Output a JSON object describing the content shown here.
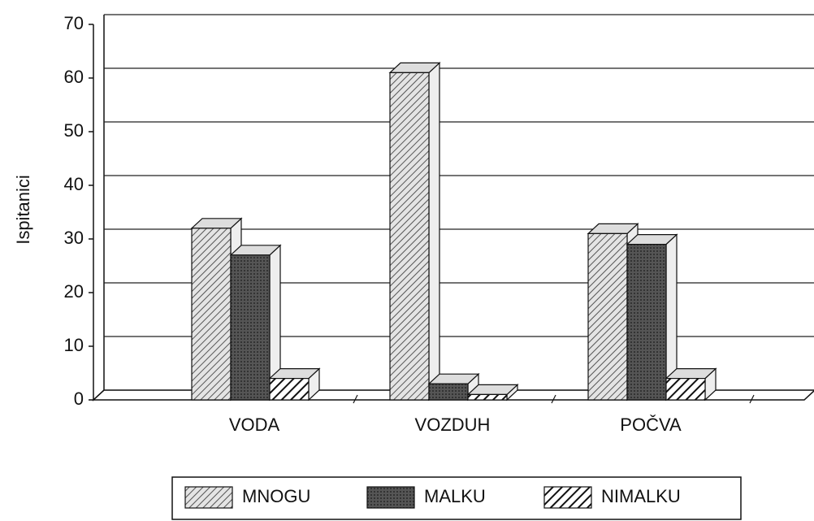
{
  "chart_data": {
    "type": "bar3d",
    "ylabel": "Ispitanici",
    "categories": [
      "VODA",
      "VOZDUH",
      "POČVA"
    ],
    "series": [
      {
        "name": "MNOGU",
        "color": "#bbbbbb",
        "values": [
          32,
          61,
          31
        ]
      },
      {
        "name": "MALKU",
        "color": "#444444",
        "values": [
          27,
          3,
          29
        ]
      },
      {
        "name": "NIMALKU",
        "color": "#000000",
        "values": [
          4,
          1,
          4
        ]
      }
    ],
    "ylim": [
      0,
      70
    ],
    "yticks": [
      0,
      10,
      20,
      30,
      40,
      50,
      60,
      70
    ],
    "grid": true,
    "legend": "bottom"
  }
}
